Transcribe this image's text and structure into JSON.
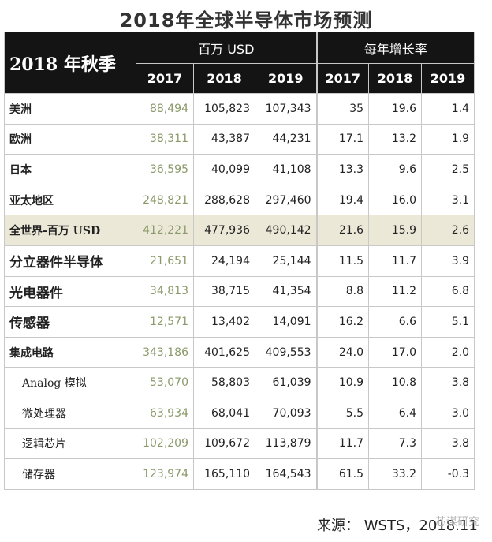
{
  "title": "2018年全球半导体市场预测",
  "header": {
    "season": "2018 年秋季",
    "group_values": "百万 USD",
    "group_growth": "每年增长率",
    "years": [
      "2017",
      "2018",
      "2019",
      "2017",
      "2018",
      "2019"
    ]
  },
  "rows": [
    {
      "label": "美洲",
      "v2017": "88,494",
      "v2018": "105,823",
      "v2019": "107,343",
      "g2017": "35",
      "g2018": "19.6",
      "g2019": "1.4"
    },
    {
      "label": "欧洲",
      "v2017": "38,311",
      "v2018": "43,387",
      "v2019": "44,231",
      "g2017": "17.1",
      "g2018": "13.2",
      "g2019": "1.9"
    },
    {
      "label": "日本",
      "v2017": "36,595",
      "v2018": "40,099",
      "v2019": "41,108",
      "g2017": "13.3",
      "g2018": "9.6",
      "g2019": "2.5"
    },
    {
      "label": "亚太地区",
      "v2017": "248,821",
      "v2018": "288,628",
      "v2019": "297,460",
      "g2017": "19.4",
      "g2018": "16.0",
      "g2019": "3.1"
    },
    {
      "label": "全世界-百万 USD",
      "v2017": "412,221",
      "v2018": "477,936",
      "v2019": "490,142",
      "g2017": "21.6",
      "g2018": "15.9",
      "g2019": "2.6"
    },
    {
      "label": "分立器件半导体",
      "v2017": "21,651",
      "v2018": "24,194",
      "v2019": "25,144",
      "g2017": "11.5",
      "g2018": "11.7",
      "g2019": "3.9"
    },
    {
      "label": "光电器件",
      "v2017": "34,813",
      "v2018": "38,715",
      "v2019": "41,354",
      "g2017": "8.8",
      "g2018": "11.2",
      "g2019": "6.8"
    },
    {
      "label": "传感器",
      "v2017": "12,571",
      "v2018": "13,402",
      "v2019": "14,091",
      "g2017": "16.2",
      "g2018": "6.6",
      "g2019": "5.1"
    },
    {
      "label": "集成电路",
      "v2017": "343,186",
      "v2018": "401,625",
      "v2019": "409,553",
      "g2017": "24.0",
      "g2018": "17.0",
      "g2019": "2.0"
    },
    {
      "label": "Analog 模拟",
      "v2017": "53,070",
      "v2018": "58,803",
      "v2019": "61,039",
      "g2017": "10.9",
      "g2018": "10.8",
      "g2019": "3.8"
    },
    {
      "label": "微处理器",
      "v2017": "63,934",
      "v2018": "68,041",
      "v2019": "70,093",
      "g2017": "5.5",
      "g2018": "6.4",
      "g2019": "3.0"
    },
    {
      "label": "逻辑芯片",
      "v2017": "102,209",
      "v2018": "109,672",
      "v2019": "113,879",
      "g2017": "11.7",
      "g2018": "7.3",
      "g2019": "3.8"
    },
    {
      "label": "储存器",
      "v2017": "123,974",
      "v2018": "165,110",
      "v2019": "164,543",
      "g2017": "61.5",
      "g2018": "33.2",
      "g2019": "-0.3"
    }
  ],
  "source": "来源：  WSTS，2018.11",
  "watermark": "芯谋研究"
}
